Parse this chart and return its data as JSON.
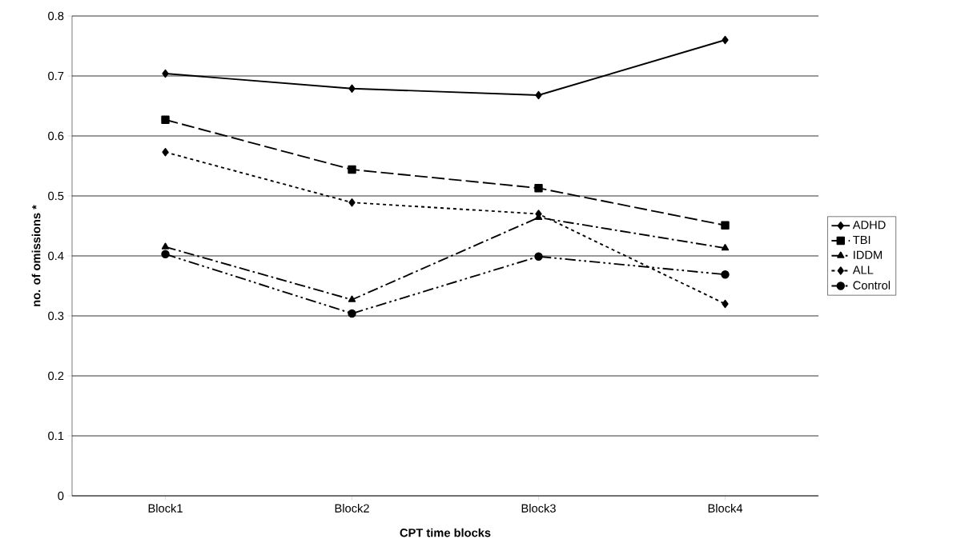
{
  "chart_data": {
    "type": "line",
    "xlabel": "CPT time blocks",
    "ylabel": "no. of omissions *",
    "categories": [
      "Block1",
      "Block2",
      "Block3",
      "Block4"
    ],
    "series": [
      {
        "name": "ADHD",
        "color": "#000000",
        "marker": "diamond",
        "line_style": "solid",
        "values": [
          0.704,
          0.679,
          0.668,
          0.76
        ]
      },
      {
        "name": "TBI",
        "color": "#000000",
        "marker": "square",
        "line_style": "dashed",
        "values": [
          0.627,
          0.544,
          0.513,
          0.451
        ]
      },
      {
        "name": "IDDM",
        "color": "#000000",
        "marker": "triangle",
        "line_style": "dashdot",
        "values": [
          0.415,
          0.327,
          0.464,
          0.413
        ]
      },
      {
        "name": "ALL",
        "color": "#000000",
        "marker": "diamond",
        "line_style": "dotted",
        "values": [
          0.573,
          0.489,
          0.47,
          0.32
        ]
      },
      {
        "name": "Control",
        "color": "#000000",
        "marker": "circle",
        "line_style": "dashdotdot",
        "values": [
          0.403,
          0.304,
          0.399,
          0.369
        ]
      }
    ],
    "ylim": [
      0,
      0.8
    ],
    "yticks": [
      0,
      0.1,
      0.2,
      0.3,
      0.4,
      0.5,
      0.6,
      0.7,
      0.8
    ],
    "grid": "y",
    "legend": "right"
  }
}
